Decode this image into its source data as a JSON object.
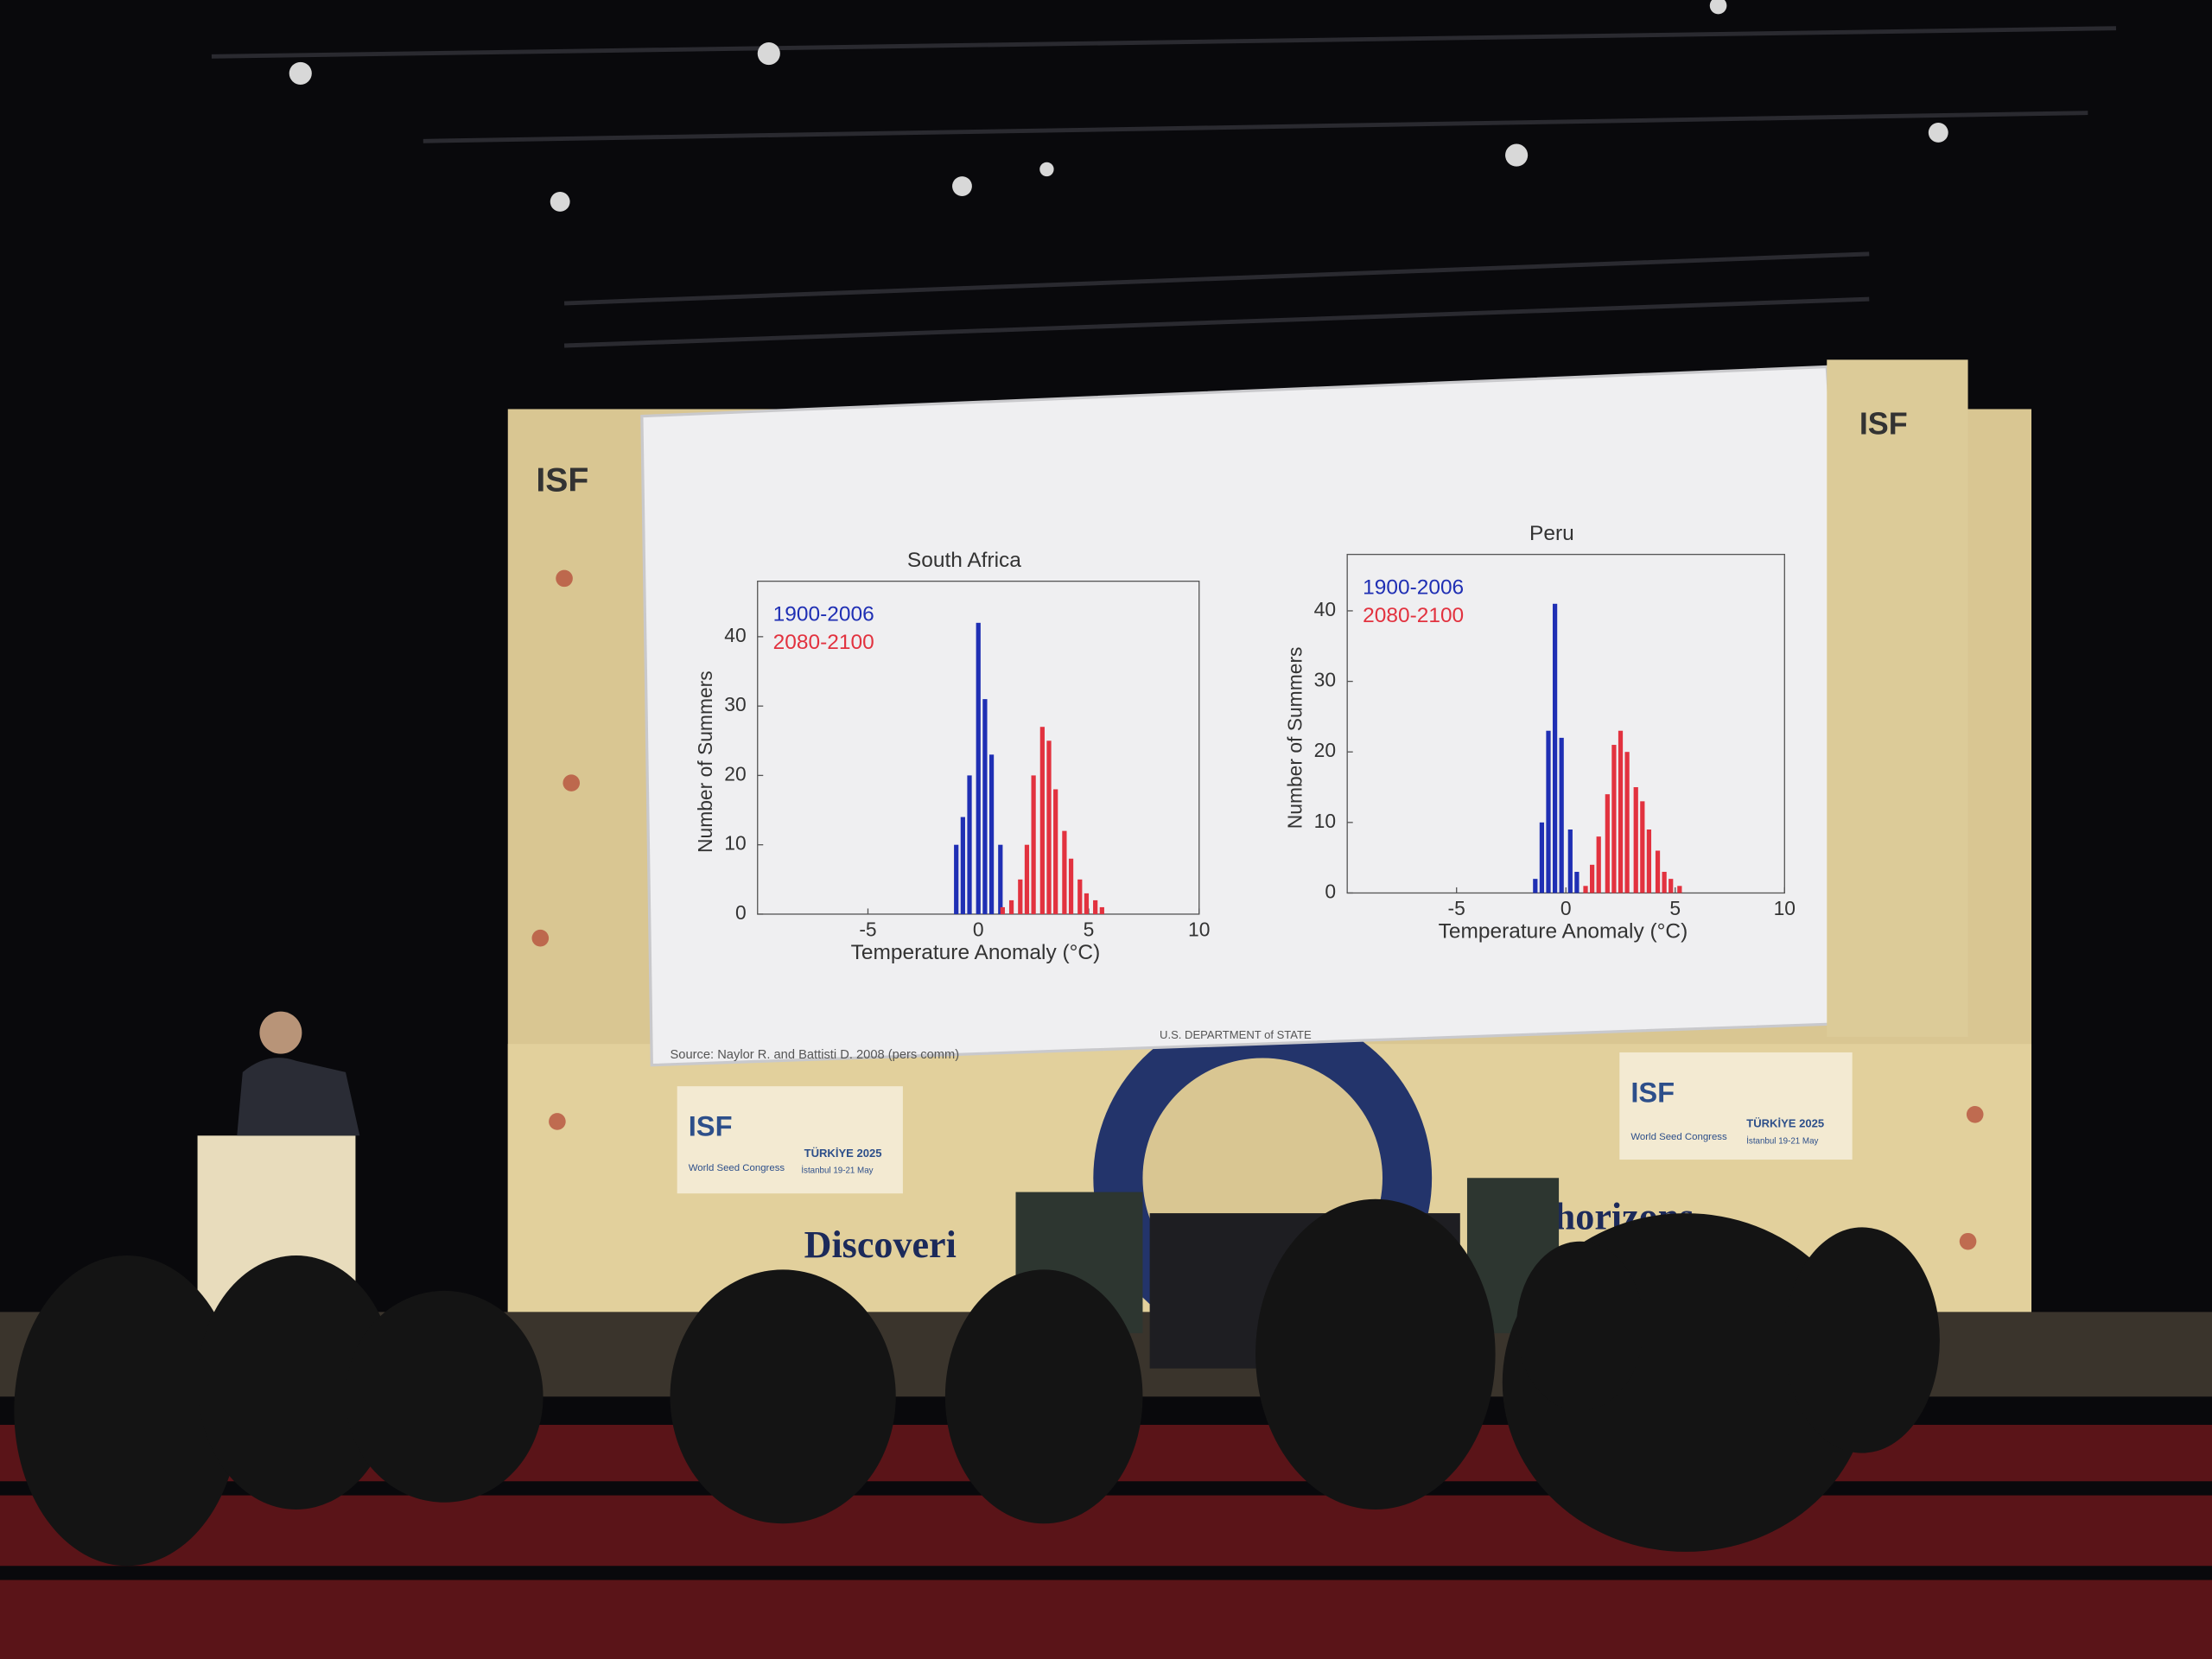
{
  "chart_data": [
    {
      "type": "bar",
      "title": "South Africa",
      "x_label": "Temperature Anomaly (°C)",
      "y_label": "Number of Summers",
      "xlim": [
        -10,
        10
      ],
      "xticks": [
        -5,
        0,
        5,
        10
      ],
      "ylim": [
        0,
        48
      ],
      "yticks": [
        0,
        10,
        20,
        30,
        40
      ],
      "series": [
        {
          "name": "1900-2006",
          "color": "#1f2fb4",
          "x": [
            -1.0,
            -0.7,
            -0.4,
            0,
            0.3,
            0.6,
            1.0
          ],
          "values": [
            10,
            14,
            20,
            42,
            31,
            23,
            10
          ]
        },
        {
          "name": "2080-2100",
          "color": "#e2323f",
          "x": [
            1.1,
            1.5,
            1.9,
            2.2,
            2.5,
            2.9,
            3.2,
            3.5,
            3.9,
            4.2,
            4.6,
            4.9,
            5.3,
            5.6
          ],
          "values": [
            1,
            2,
            5,
            10,
            20,
            27,
            25,
            18,
            12,
            8,
            5,
            3,
            2,
            1
          ]
        }
      ]
    },
    {
      "type": "bar",
      "title": "Peru",
      "x_label": "Temperature Anomaly (°C)",
      "y_label": "Number of Summers",
      "xlim": [
        -10,
        10
      ],
      "xticks": [
        -5,
        0,
        5,
        10
      ],
      "ylim": [
        0,
        48
      ],
      "yticks": [
        0,
        10,
        20,
        30,
        40
      ],
      "series": [
        {
          "name": "1900-2006",
          "color": "#1f2fb4",
          "x": [
            -1.4,
            -1.1,
            -0.8,
            -0.5,
            -0.2,
            0.2,
            0.5
          ],
          "values": [
            2,
            10,
            23,
            41,
            22,
            9,
            3
          ]
        },
        {
          "name": "2080-2100",
          "color": "#e2323f",
          "x": [
            0.9,
            1.2,
            1.5,
            1.9,
            2.2,
            2.5,
            2.8,
            3.2,
            3.5,
            3.8,
            4.2,
            4.5,
            4.8,
            5.2
          ],
          "values": [
            1,
            4,
            8,
            14,
            21,
            23,
            20,
            15,
            13,
            9,
            6,
            3,
            2,
            1
          ]
        }
      ]
    }
  ],
  "slide": {
    "source": "Source: Naylor R. and Battisti D. 2008 (pers comm)",
    "footer": "U.S. DEPARTMENT of STATE"
  },
  "stage": {
    "logo": "ISF",
    "event": "World Seed Congress",
    "edition": "TÜRKİYE 2025",
    "dates": "İstanbul 19-21 May",
    "slogan_left": "Discoveri",
    "slogan_right": "d horizons"
  }
}
